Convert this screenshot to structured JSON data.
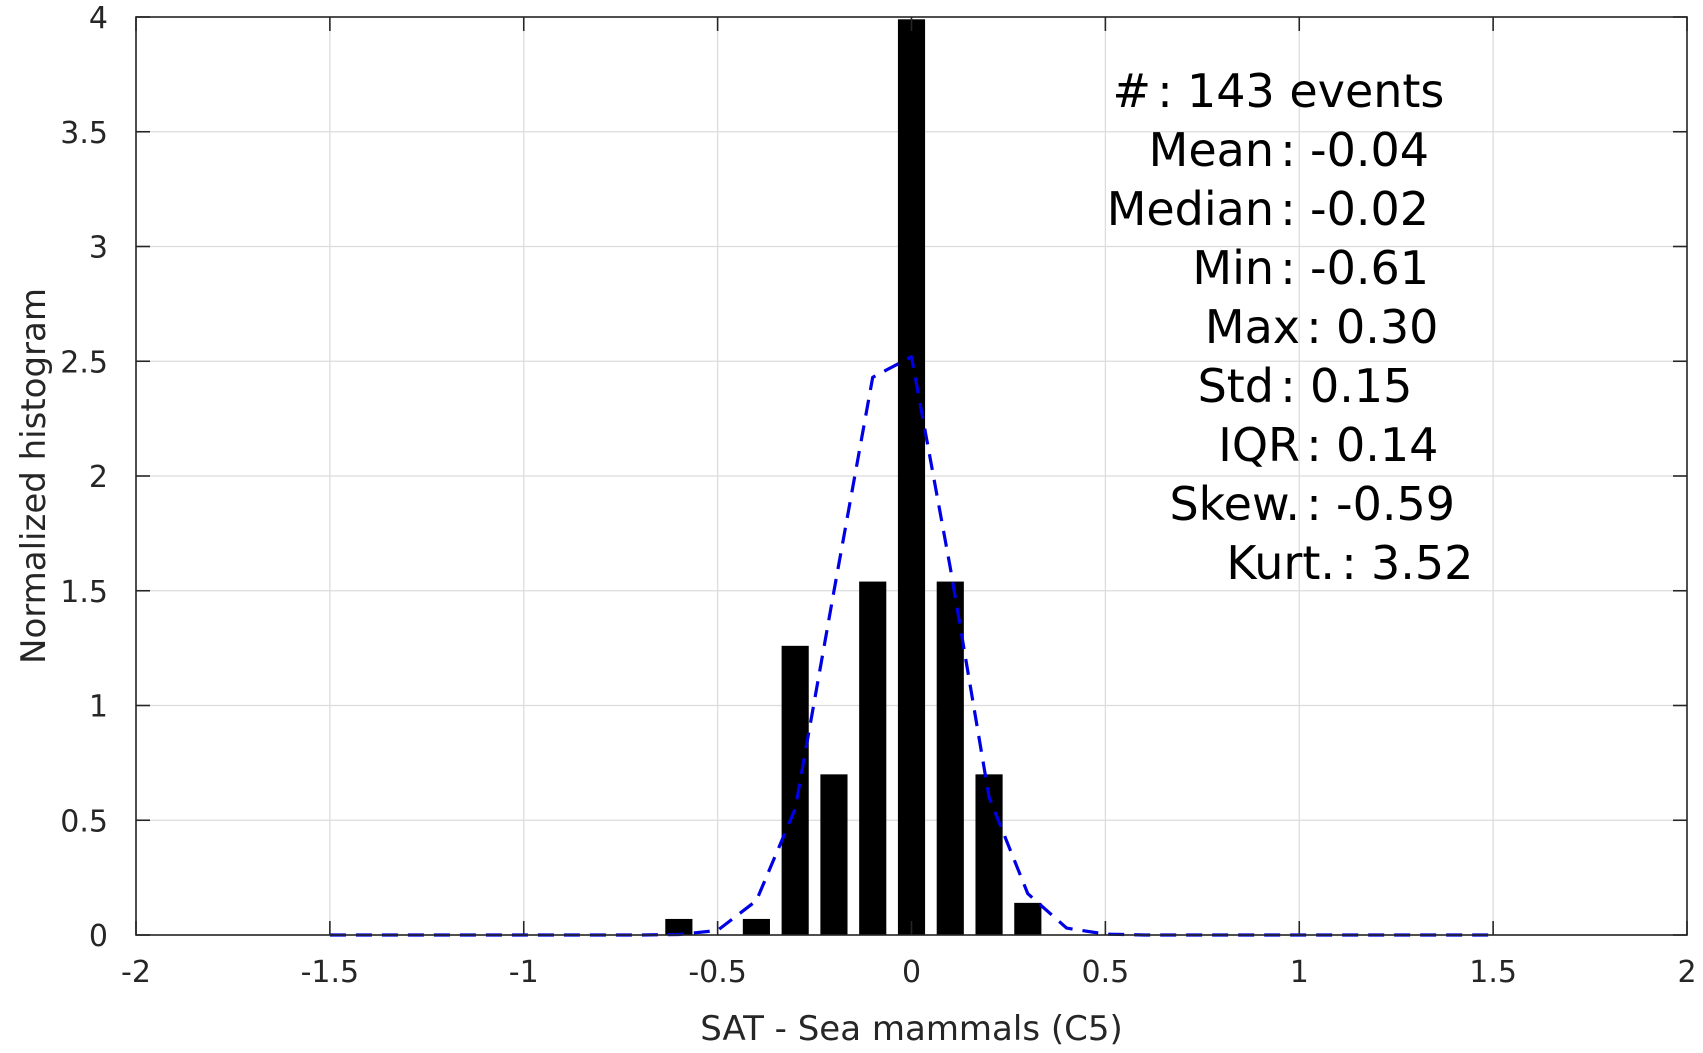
{
  "chart_data": {
    "type": "bar",
    "xlabel": "SAT - Sea mammals (C5)",
    "ylabel": "Normalized histogram",
    "xlim": [
      -2,
      2
    ],
    "ylim": [
      0,
      4
    ],
    "grid": true,
    "x_ticks": [
      -2,
      -1.5,
      -1,
      -0.5,
      0,
      0.5,
      1,
      1.5,
      2
    ],
    "x_tick_labels": [
      "-2",
      "-1.5",
      "-1",
      "-0.5",
      "0",
      "0.5",
      "1",
      "1.5",
      "2"
    ],
    "y_ticks": [
      0,
      0.5,
      1,
      1.5,
      2,
      2.5,
      3,
      3.5,
      4
    ],
    "y_tick_labels": [
      "0",
      "0.5",
      "1",
      "1.5",
      "2",
      "2.5",
      "3",
      "3.5",
      "4"
    ],
    "bar_width": 0.07,
    "bars": {
      "x": [
        -0.6,
        -0.4,
        -0.3,
        -0.2,
        -0.1,
        0,
        0.1,
        0.2,
        0.3
      ],
      "values": [
        0.07,
        0.07,
        1.26,
        0.7,
        1.54,
        3.99,
        1.54,
        0.7,
        0.14
      ],
      "color": "#000000"
    },
    "fit_curve": {
      "style": "dashed",
      "color": "#0000e6",
      "x": [
        -1.5,
        -1.4,
        -1.3,
        -1.2,
        -1.1,
        -1.0,
        -0.9,
        -0.8,
        -0.7,
        -0.6,
        -0.5,
        -0.4,
        -0.3,
        -0.2,
        -0.1,
        0,
        0.1,
        0.2,
        0.3,
        0.4,
        0.5,
        0.6,
        0.7,
        0.8,
        0.9,
        1.0,
        1.1,
        1.2,
        1.3,
        1.4,
        1.5
      ],
      "y": [
        0,
        0,
        0,
        0,
        0,
        0,
        0,
        0,
        0,
        0.002,
        0.02,
        0.15,
        0.55,
        1.5,
        2.43,
        2.52,
        1.6,
        0.6,
        0.18,
        0.03,
        0.004,
        0,
        0,
        0,
        0,
        0,
        0,
        0,
        0,
        0,
        0
      ]
    },
    "stats": [
      {
        "label": "#",
        "sep": ":",
        "value": "143 events"
      },
      {
        "label": "Mean",
        "sep": ":",
        "value": "-0.04"
      },
      {
        "label": "Median",
        "sep": ":",
        "value": "-0.02"
      },
      {
        "label": "Min",
        "sep": ":",
        "value": "-0.61"
      },
      {
        "label": "Max",
        "sep": ":",
        "value": "0.30"
      },
      {
        "label": "Std",
        "sep": ":",
        "value": "0.15"
      },
      {
        "label": "IQR",
        "sep": ":",
        "value": "0.14"
      },
      {
        "label": "Skew.",
        "sep": ":",
        "value": "-0.59"
      },
      {
        "label": "Kurt.",
        "sep": ":",
        "value": "3.52"
      }
    ]
  }
}
